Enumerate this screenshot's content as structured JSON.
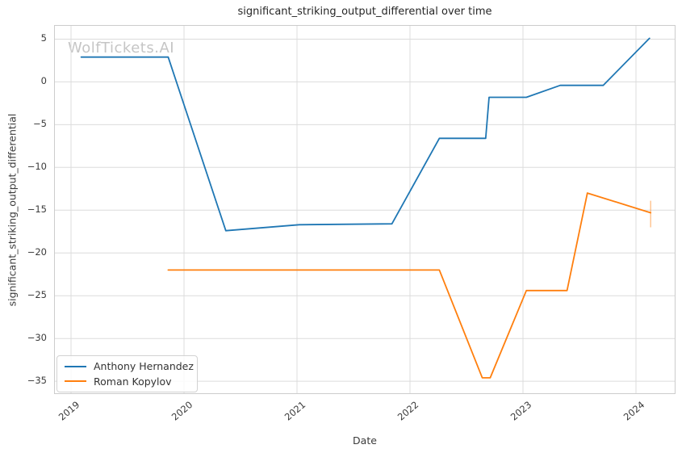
{
  "title": "significant_striking_output_differential over time",
  "watermark": "WolfTickets.AI",
  "xlabel": "Date",
  "ylabel": "significant_striking_output_differential",
  "colors": {
    "series_blue": "#1f77b4",
    "series_orange": "#ff7f0e",
    "grid": "#dcdcdc",
    "spine": "#cccccc",
    "text": "#3b3b3b",
    "title_text": "#262626",
    "watermark_text": "#c5c5c5",
    "background": "#ffffff"
  },
  "legend": {
    "items": [
      {
        "label": "Anthony Hernandez",
        "color": "#1f77b4"
      },
      {
        "label": "Roman Kopylov",
        "color": "#ff7f0e"
      }
    ]
  },
  "chart_data": {
    "type": "line",
    "title": "significant_striking_output_differential over time",
    "xlabel": "Date",
    "ylabel": "significant_striking_output_differential",
    "grid": true,
    "legend_position": "lower-left",
    "xlim": [
      2018.85,
      2024.35
    ],
    "ylim": [
      -36.5,
      6.65
    ],
    "x_ticks": [
      2019,
      2020,
      2021,
      2022,
      2023,
      2024
    ],
    "x_tick_labels": [
      "2019",
      "2020",
      "2021",
      "2022",
      "2023",
      "2024"
    ],
    "y_ticks": [
      5,
      0,
      -5,
      -10,
      -15,
      -20,
      -25,
      -30,
      -35
    ],
    "y_tick_labels": [
      "5",
      "0",
      "−5",
      "−10",
      "−15",
      "−20",
      "−25",
      "−30",
      "−35"
    ],
    "series": [
      {
        "name": "Anthony Hernandez",
        "color": "#1f77b4",
        "x": [
          2019.09,
          2019.86,
          2020.37,
          2021.02,
          2021.84,
          2022.26,
          2022.67,
          2022.7,
          2023.03,
          2023.33,
          2023.71,
          2024.12
        ],
        "y": [
          2.9,
          2.9,
          -17.4,
          -16.7,
          -16.6,
          -6.6,
          -6.6,
          -1.8,
          -1.8,
          -0.4,
          -0.4,
          5.1
        ]
      },
      {
        "name": "Roman Kopylov",
        "color": "#ff7f0e",
        "x": [
          2019.86,
          2022.26,
          2022.64,
          2022.71,
          2023.03,
          2023.39,
          2023.57,
          2024.13
        ],
        "y": [
          -22.0,
          -22.0,
          -34.6,
          -34.6,
          -24.4,
          -24.4,
          -13.0,
          -15.3
        ],
        "endpoint_errorbar": {
          "x": 2024.13,
          "y_low": -17.0,
          "y_high": -13.9
        }
      }
    ]
  }
}
